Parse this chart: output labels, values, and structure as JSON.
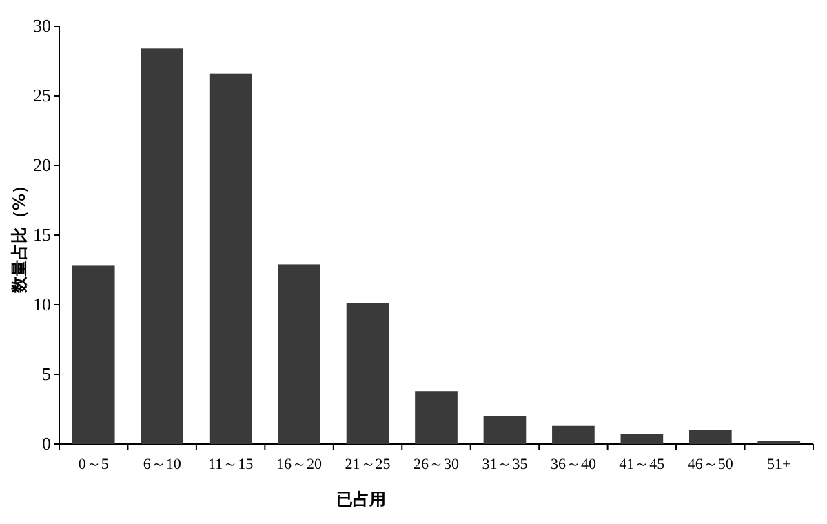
{
  "chart_data": {
    "type": "bar",
    "ylabel": "数量占比（%）",
    "xlabel": "已占用",
    "categories": [
      "0～5",
      "6～10",
      "11～15",
      "16～20",
      "21～25",
      "26～30",
      "31～35",
      "36～40",
      "41～45",
      "46～50",
      "51+"
    ],
    "values": [
      12.8,
      28.4,
      26.6,
      12.9,
      10.1,
      3.8,
      2.0,
      1.3,
      0.7,
      1.0,
      0.2
    ],
    "color": "#3a3a3a",
    "ylim": [
      0,
      30
    ],
    "yticks": [
      0,
      5,
      10,
      15,
      20,
      25,
      30
    ]
  }
}
